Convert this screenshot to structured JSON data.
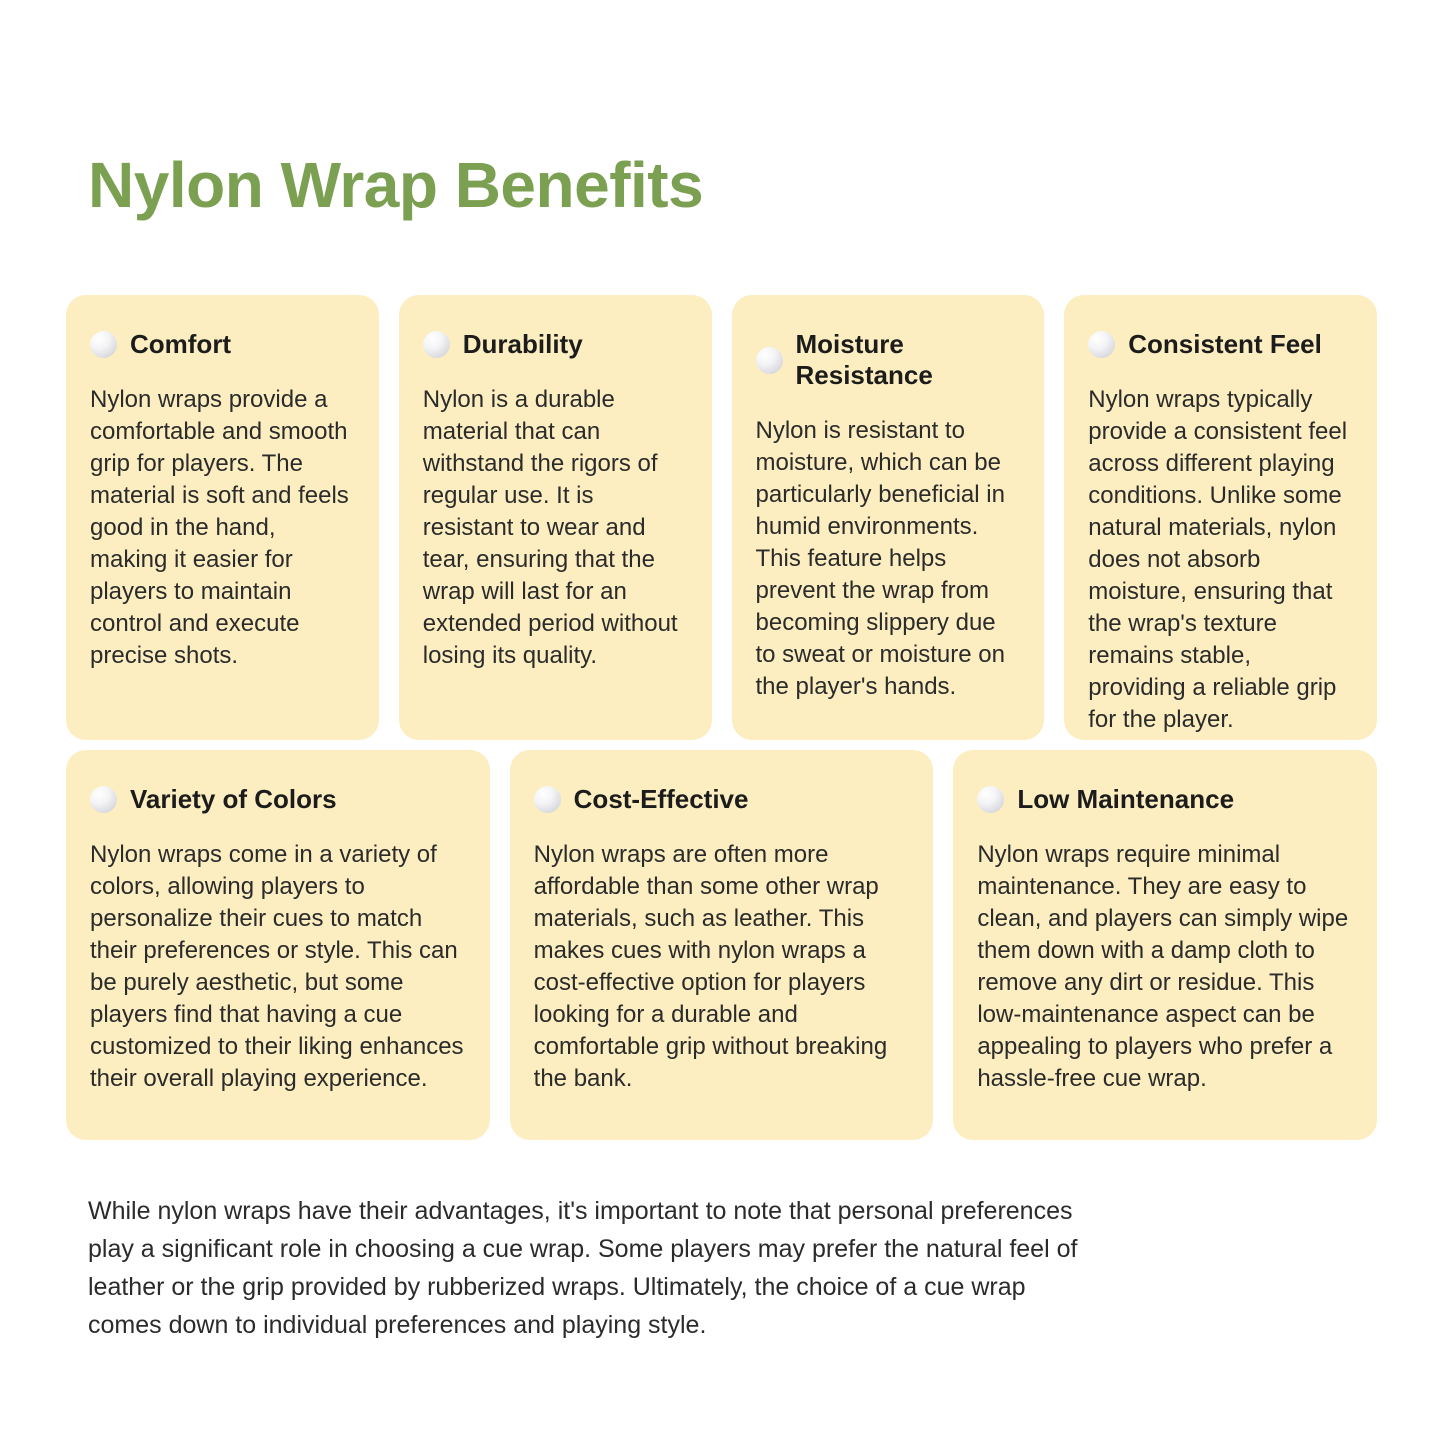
{
  "page": {
    "title": "Nylon Wrap Benefits",
    "closing_note": "While nylon wraps have their advantages, it's important to note that personal preferences play a significant role in choosing a cue wrap. Some players may prefer the natural feel of leather or the grip provided by rubberized wraps. Ultimately, the choice of a cue wrap comes down to individual preferences and playing style."
  },
  "icons": {
    "card_bullet": "cue-ball-icon"
  },
  "colors": {
    "title_green": "#7BA052",
    "card_bg": "#FCEEC0",
    "heading_text": "#1C1C1C",
    "body_text": "#2B2B2B",
    "page_bg": "#FFFFFF"
  },
  "cards": [
    {
      "title": "Comfort",
      "body": "Nylon wraps provide a comfortable and smooth grip for players. The material is soft and feels good in the hand, making it easier for players to maintain control and execute precise shots."
    },
    {
      "title": "Durability",
      "body": "Nylon is a durable material that can withstand the rigors of regular use. It is resistant to wear and tear, ensuring that the wrap will last for an extended period without losing its quality."
    },
    {
      "title": "Moisture Resistance",
      "body": "Nylon is resistant to moisture, which can be particularly beneficial in humid environments. This feature helps prevent the wrap from becoming slippery due to sweat or moisture on the player's hands."
    },
    {
      "title": "Consistent Feel",
      "body": "Nylon wraps typically provide a consistent feel across different playing conditions. Unlike some natural materials, nylon does not absorb moisture, ensuring that the wrap's texture remains stable, providing a reliable grip for the player."
    },
    {
      "title": "Variety of Colors",
      "body": "Nylon wraps come in a variety of colors, allowing players to personalize their cues to match their preferences or style. This can be purely aesthetic, but some players find that having a cue customized to their liking enhances their overall playing experience."
    },
    {
      "title": "Cost-Effective",
      "body": "Nylon wraps are often more affordable than some other wrap materials, such as leather. This makes cues with nylon wraps a cost-effective option for players looking for a durable and comfortable grip without breaking the bank."
    },
    {
      "title": "Low Maintenance",
      "body": "Nylon wraps require minimal maintenance. They are easy to clean, and players can simply wipe them down with a damp cloth to remove any dirt or residue. This low-maintenance aspect can be appealing to players who prefer a hassle-free cue wrap."
    }
  ]
}
